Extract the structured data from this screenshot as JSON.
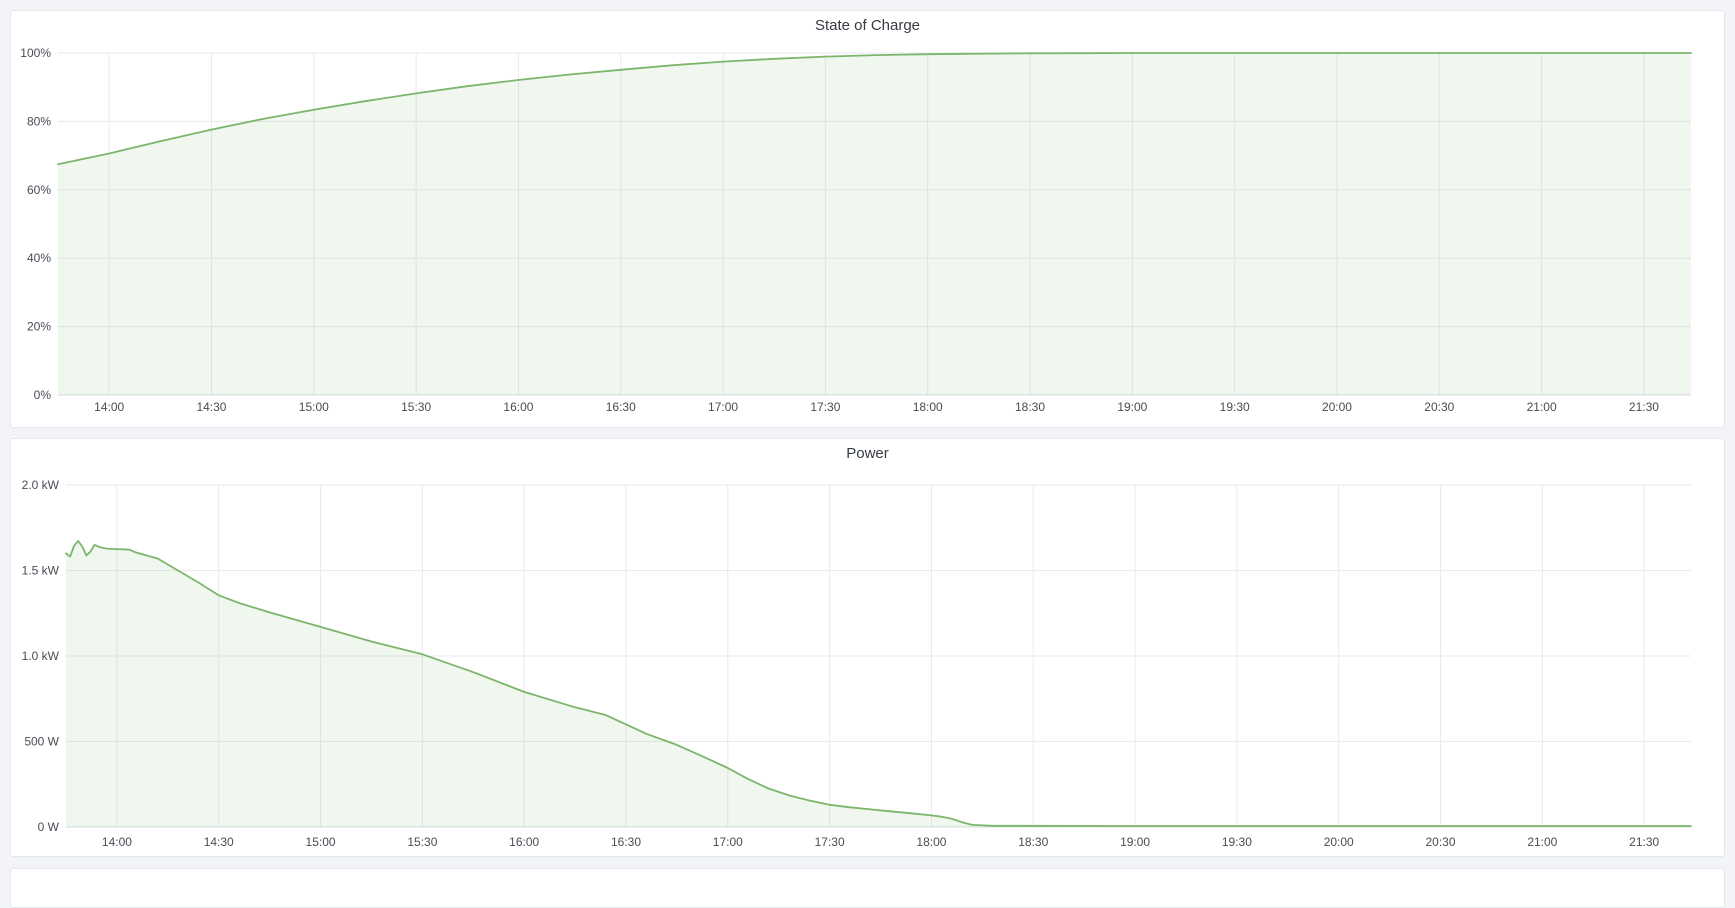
{
  "page": {
    "background_color": "#f3f4f8",
    "panel_background": "#ffffff"
  },
  "panels": [
    {
      "title": "State of Charge"
    },
    {
      "title": "Power"
    },
    {
      "title": ""
    }
  ],
  "colors": {
    "series_line": "#7cb56c",
    "series_fill": "rgba(124,181,108,0.115)",
    "gridline": "#e9eaed",
    "axis_baseline": "#d9dbdf",
    "tick_text": "#484c54",
    "title_text": "#373c44"
  },
  "chart_data": [
    {
      "type": "area",
      "title": "State of Charge",
      "xlabel": "",
      "ylabel": "",
      "grid": true,
      "legend": "none",
      "ylim": [
        0,
        100
      ],
      "xlim_hours": [
        13.75,
        21.73
      ],
      "y_ticks": [
        {
          "v": 0,
          "label": "0%"
        },
        {
          "v": 20,
          "label": "20%"
        },
        {
          "v": 40,
          "label": "40%"
        },
        {
          "v": 60,
          "label": "60%"
        },
        {
          "v": 80,
          "label": "80%"
        },
        {
          "v": 100,
          "label": "100%"
        }
      ],
      "x_ticks": [
        {
          "h": 14.0,
          "label": "14:00"
        },
        {
          "h": 14.5,
          "label": "14:30"
        },
        {
          "h": 15.0,
          "label": "15:00"
        },
        {
          "h": 15.5,
          "label": "15:30"
        },
        {
          "h": 16.0,
          "label": "16:00"
        },
        {
          "h": 16.5,
          "label": "16:30"
        },
        {
          "h": 17.0,
          "label": "17:00"
        },
        {
          "h": 17.5,
          "label": "17:30"
        },
        {
          "h": 18.0,
          "label": "18:00"
        },
        {
          "h": 18.5,
          "label": "18:30"
        },
        {
          "h": 19.0,
          "label": "19:00"
        },
        {
          "h": 19.5,
          "label": "19:30"
        },
        {
          "h": 20.0,
          "label": "20:00"
        },
        {
          "h": 20.5,
          "label": "20:30"
        },
        {
          "h": 21.0,
          "label": "21:00"
        },
        {
          "h": 21.5,
          "label": "21:30"
        }
      ],
      "series": [
        {
          "name": "State of Charge (%)",
          "points": [
            [
              13.75,
              67.5
            ],
            [
              14.0,
              70.6
            ],
            [
              14.25,
              74.2
            ],
            [
              14.5,
              77.6
            ],
            [
              14.75,
              80.7
            ],
            [
              15.0,
              83.4
            ],
            [
              15.25,
              85.9
            ],
            [
              15.5,
              88.2
            ],
            [
              15.75,
              90.3
            ],
            [
              16.0,
              92.1
            ],
            [
              16.25,
              93.7
            ],
            [
              16.5,
              95.1
            ],
            [
              16.75,
              96.4
            ],
            [
              17.0,
              97.5
            ],
            [
              17.25,
              98.3
            ],
            [
              17.5,
              98.95
            ],
            [
              17.75,
              99.4
            ],
            [
              18.0,
              99.65
            ],
            [
              18.25,
              99.8
            ],
            [
              18.5,
              99.9
            ],
            [
              18.75,
              99.95
            ],
            [
              19.0,
              100
            ],
            [
              19.5,
              100
            ],
            [
              20.0,
              100
            ],
            [
              20.5,
              100
            ],
            [
              21.0,
              100
            ],
            [
              21.73,
              100
            ]
          ]
        }
      ]
    },
    {
      "type": "area",
      "title": "Power",
      "xlabel": "",
      "ylabel": "",
      "grid": true,
      "legend": "none",
      "ylim": [
        0,
        2000
      ],
      "xlim_hours": [
        13.75,
        21.73
      ],
      "y_ticks": [
        {
          "v": 0,
          "label": "0 W"
        },
        {
          "v": 500,
          "label": "500 W"
        },
        {
          "v": 1000,
          "label": "1.0 kW"
        },
        {
          "v": 1500,
          "label": "1.5 kW"
        },
        {
          "v": 2000,
          "label": "2.0 kW"
        }
      ],
      "x_ticks": [
        {
          "h": 14.0,
          "label": "14:00"
        },
        {
          "h": 14.5,
          "label": "14:30"
        },
        {
          "h": 15.0,
          "label": "15:00"
        },
        {
          "h": 15.5,
          "label": "15:30"
        },
        {
          "h": 16.0,
          "label": "16:00"
        },
        {
          "h": 16.5,
          "label": "16:30"
        },
        {
          "h": 17.0,
          "label": "17:00"
        },
        {
          "h": 17.5,
          "label": "17:30"
        },
        {
          "h": 18.0,
          "label": "18:00"
        },
        {
          "h": 18.5,
          "label": "18:30"
        },
        {
          "h": 19.0,
          "label": "19:00"
        },
        {
          "h": 19.5,
          "label": "19:30"
        },
        {
          "h": 20.0,
          "label": "20:00"
        },
        {
          "h": 20.5,
          "label": "20:30"
        },
        {
          "h": 21.0,
          "label": "21:00"
        },
        {
          "h": 21.5,
          "label": "21:30"
        }
      ],
      "series": [
        {
          "name": "Power (W)",
          "points": [
            [
              13.75,
              1600
            ],
            [
              13.77,
              1582
            ],
            [
              13.79,
              1645
            ],
            [
              13.81,
              1673
            ],
            [
              13.83,
              1640
            ],
            [
              13.85,
              1588
            ],
            [
              13.87,
              1610
            ],
            [
              13.89,
              1650
            ],
            [
              13.92,
              1635
            ],
            [
              13.95,
              1628
            ],
            [
              14.0,
              1625
            ],
            [
              14.06,
              1622
            ],
            [
              14.09,
              1607
            ],
            [
              14.2,
              1570
            ],
            [
              14.3,
              1500
            ],
            [
              14.4,
              1430
            ],
            [
              14.5,
              1355
            ],
            [
              14.6,
              1310
            ],
            [
              14.75,
              1255
            ],
            [
              15.0,
              1170
            ],
            [
              15.25,
              1085
            ],
            [
              15.5,
              1010
            ],
            [
              15.75,
              905
            ],
            [
              16.0,
              790
            ],
            [
              16.25,
              700
            ],
            [
              16.4,
              655
            ],
            [
              16.5,
              600
            ],
            [
              16.6,
              545
            ],
            [
              16.75,
              480
            ],
            [
              16.9,
              400
            ],
            [
              17.0,
              345
            ],
            [
              17.1,
              280
            ],
            [
              17.2,
              225
            ],
            [
              17.3,
              185
            ],
            [
              17.4,
              155
            ],
            [
              17.5,
              130
            ],
            [
              17.6,
              115
            ],
            [
              17.75,
              97
            ],
            [
              17.9,
              80
            ],
            [
              18.0,
              68
            ],
            [
              18.05,
              60
            ],
            [
              18.1,
              48
            ],
            [
              18.15,
              28
            ],
            [
              18.2,
              12
            ],
            [
              18.3,
              7
            ],
            [
              19.0,
              6
            ],
            [
              20.0,
              6
            ],
            [
              21.0,
              6
            ],
            [
              21.73,
              6
            ]
          ]
        }
      ]
    }
  ]
}
